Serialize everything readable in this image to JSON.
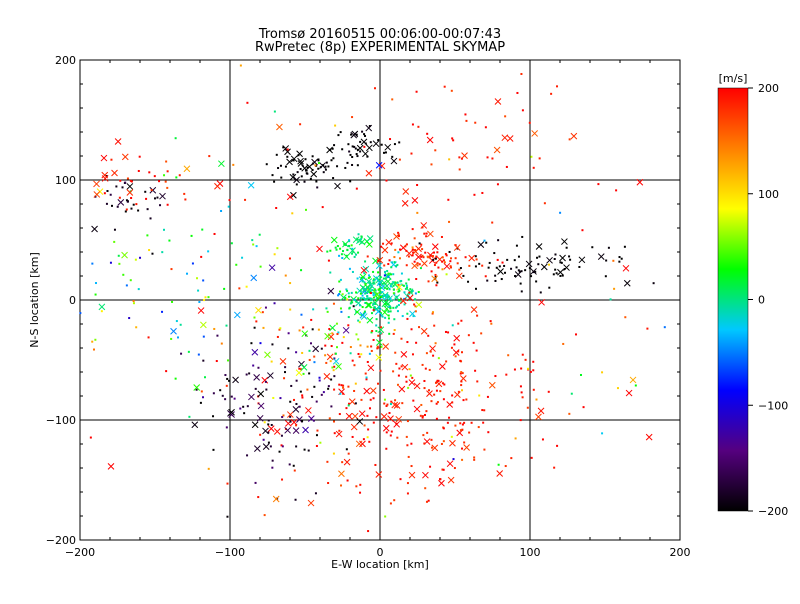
{
  "chart_data": {
    "type": "scatter",
    "title": "Tromsø 20160515 00:06:00-00:07:43",
    "subtitle": "RwPretec (8p) EXPERIMENTAL SKYMAP",
    "xlabel": "E-W location [km]",
    "ylabel": "N-S location [km]",
    "xlim": [
      -200,
      200
    ],
    "ylim": [
      -200,
      200
    ],
    "xticks": [
      -200,
      -100,
      0,
      100,
      200
    ],
    "yticks": [
      -200,
      -100,
      0,
      100,
      200
    ],
    "xtick_labels": [
      "−200",
      "−100",
      "0",
      "100",
      "200"
    ],
    "ytick_labels": [
      "−200",
      "−100",
      "0",
      "100",
      "200"
    ],
    "grid": true,
    "colorbar": {
      "label": "[m/s]",
      "range": [
        -200,
        200
      ],
      "ticks": [
        200,
        100,
        0,
        -100,
        -200
      ],
      "tick_labels": [
        "200",
        "100",
        "0",
        "−100",
        "−200"
      ],
      "colors": [
        "#000000",
        "#55007f",
        "#0000ff",
        "#00c8ff",
        "#00ff00",
        "#ffff00",
        "#ff8000",
        "#ff0000"
      ]
    },
    "marker_types": [
      "dot",
      "x"
    ],
    "clusters": [
      {
        "cx": 0,
        "cy": 5,
        "sx": 12,
        "sy": 12,
        "n": 260,
        "v": 0,
        "vs": 20
      },
      {
        "cx": -20,
        "cy": 45,
        "sx": 7,
        "sy": 5,
        "n": 40,
        "v": 10,
        "vs": 15
      },
      {
        "cx": -50,
        "cy": 110,
        "sx": 12,
        "sy": 8,
        "n": 60,
        "v": -200,
        "vs": 5
      },
      {
        "cx": -15,
        "cy": 128,
        "sx": 15,
        "sy": 8,
        "n": 50,
        "v": -200,
        "vs": 5
      },
      {
        "cx": -170,
        "cy": 85,
        "sx": 15,
        "sy": 12,
        "n": 30,
        "v": -190,
        "vs": 10
      },
      {
        "cx": 25,
        "cy": 40,
        "sx": 15,
        "sy": 8,
        "n": 50,
        "v": 190,
        "vs": 15
      },
      {
        "cx": 95,
        "cy": 30,
        "sx": 30,
        "sy": 10,
        "n": 90,
        "v": -200,
        "vs": 5
      },
      {
        "cx": 45,
        "cy": 30,
        "sx": 15,
        "sy": 6,
        "n": 40,
        "v": 190,
        "vs": 20
      },
      {
        "cx": 20,
        "cy": -85,
        "sx": 45,
        "sy": 45,
        "n": 330,
        "v": 190,
        "vs": 15
      },
      {
        "cx": -70,
        "cy": -80,
        "sx": 25,
        "sy": 35,
        "n": 120,
        "v": -180,
        "vs": 30
      },
      {
        "cx": -30,
        "cy": -40,
        "sx": 20,
        "sy": 20,
        "n": 60,
        "v": 60,
        "vs": 70
      },
      {
        "cx": -130,
        "cy": 15,
        "sx": 40,
        "sy": 40,
        "n": 80,
        "v": 10,
        "vs": 60
      },
      {
        "cx": -150,
        "cy": 100,
        "sx": 30,
        "sy": 15,
        "n": 40,
        "v": 190,
        "vs": 15
      },
      {
        "cx": 60,
        "cy": 130,
        "sx": 40,
        "sy": 40,
        "n": 60,
        "v": 190,
        "vs": 15
      },
      {
        "cx": 0,
        "cy": 0,
        "sx": 120,
        "sy": 110,
        "n": 160,
        "v": 120,
        "vs": 110
      }
    ]
  }
}
